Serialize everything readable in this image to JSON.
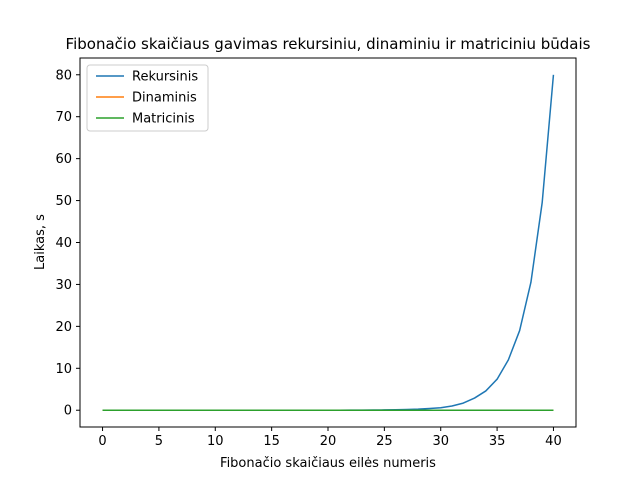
{
  "chart_data": {
    "type": "line",
    "title": "Fibonačio skaičiaus gavimas rekursiniu, dinaminiu ir matriciniu būdais",
    "xlabel": "Fibonačio skaičiaus eilės numeris",
    "ylabel": "Laikas, s",
    "xlim": [
      -2,
      42
    ],
    "ylim": [
      -4,
      84
    ],
    "xticks": [
      0,
      5,
      10,
      15,
      20,
      25,
      30,
      35,
      40
    ],
    "yticks": [
      0,
      10,
      20,
      30,
      40,
      50,
      60,
      70,
      80
    ],
    "grid": false,
    "legend_position": "top-left",
    "x": [
      0,
      1,
      2,
      3,
      4,
      5,
      6,
      7,
      8,
      9,
      10,
      11,
      12,
      13,
      14,
      15,
      16,
      17,
      18,
      19,
      20,
      21,
      22,
      23,
      24,
      25,
      26,
      27,
      28,
      29,
      30,
      31,
      32,
      33,
      34,
      35,
      36,
      37,
      38,
      39,
      40
    ],
    "series": [
      {
        "name": "Rekursinis",
        "color": "#1f77b4",
        "values": [
          0,
          0,
          0,
          0,
          0,
          0,
          0,
          0,
          0,
          0,
          0,
          0,
          0,
          0,
          0,
          0,
          0,
          0,
          0,
          0,
          0.01,
          0.01,
          0.02,
          0.03,
          0.05,
          0.07,
          0.1,
          0.17,
          0.25,
          0.4,
          0.6,
          1.0,
          1.7,
          2.9,
          4.6,
          7.4,
          12.0,
          19.0,
          30.5,
          49.5,
          80.0
        ]
      },
      {
        "name": "Dinaminis",
        "color": "#ff7f0e",
        "values": [
          0,
          0,
          0,
          0,
          0,
          0,
          0,
          0,
          0,
          0,
          0,
          0,
          0,
          0,
          0,
          0,
          0,
          0,
          0,
          0,
          0,
          0,
          0,
          0,
          0,
          0,
          0,
          0,
          0,
          0,
          0,
          0,
          0,
          0,
          0,
          0,
          0,
          0,
          0,
          0,
          0
        ]
      },
      {
        "name": "Matricinis",
        "color": "#2ca02c",
        "values": [
          0,
          0,
          0,
          0,
          0,
          0,
          0,
          0,
          0,
          0,
          0,
          0,
          0,
          0,
          0,
          0,
          0,
          0,
          0,
          0,
          0,
          0,
          0,
          0,
          0,
          0,
          0,
          0,
          0,
          0,
          0,
          0,
          0,
          0,
          0,
          0,
          0,
          0,
          0,
          0,
          0
        ]
      }
    ]
  }
}
